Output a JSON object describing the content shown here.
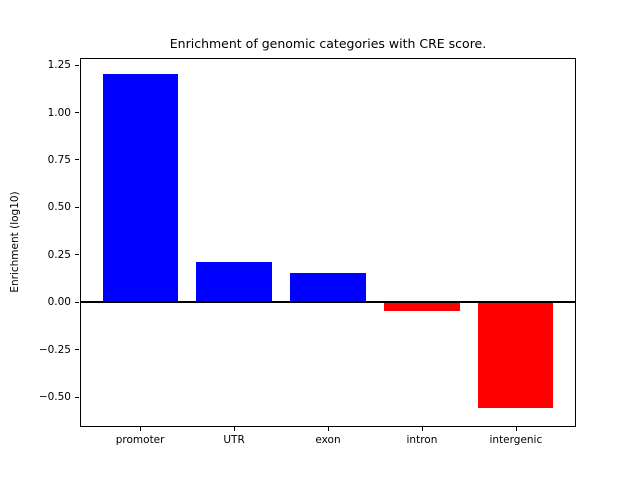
{
  "chart_data": {
    "type": "bar",
    "title": "Enrichment of genomic categories with CRE score.",
    "xlabel": "",
    "ylabel": "Enrichment (log10)",
    "categories": [
      "promoter",
      "UTR",
      "exon",
      "intron",
      "intergenic"
    ],
    "values": [
      1.2,
      0.21,
      0.15,
      -0.05,
      -0.56
    ],
    "bar_colors": [
      "#0000ff",
      "#0000ff",
      "#0000ff",
      "#ff0000",
      "#ff0000"
    ],
    "positive_color": "#0000ff",
    "negative_color": "#ff0000",
    "bar_width": 0.8,
    "ylim": [
      -0.66,
      1.285
    ],
    "xlim": [
      -0.64,
      4.64
    ],
    "yticks": [
      {
        "value": 1.25,
        "label": "1.25"
      },
      {
        "value": 1.0,
        "label": "1.00"
      },
      {
        "value": 0.75,
        "label": "0.75"
      },
      {
        "value": 0.5,
        "label": "0.50"
      },
      {
        "value": 0.25,
        "label": "0.25"
      },
      {
        "value": 0.0,
        "label": "0.00"
      },
      {
        "value": -0.25,
        "label": "−0.25"
      },
      {
        "value": -0.5,
        "label": "−0.50"
      }
    ],
    "zero_line": true,
    "grid": false,
    "legend_position": "none",
    "axis_color": "#000000",
    "background_color": "#ffffff"
  }
}
